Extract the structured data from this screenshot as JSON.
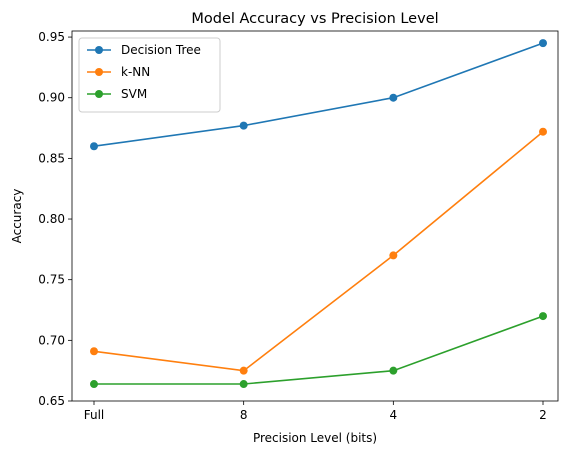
{
  "chart_data": {
    "type": "line",
    "title": "Model Accuracy vs Precision Level",
    "xlabel": "Precision Level (bits)",
    "ylabel": "Accuracy",
    "categories": [
      "Full",
      "8",
      "4",
      "2"
    ],
    "ylim": [
      0.65,
      0.955
    ],
    "yticks": [
      "0.65",
      "0.70",
      "0.75",
      "0.80",
      "0.85",
      "0.90",
      "0.95"
    ],
    "grid": false,
    "legend_position": "top-left",
    "series": [
      {
        "name": "Decision Tree",
        "color": "#1f77b4",
        "values": [
          0.86,
          0.877,
          0.9,
          0.945
        ]
      },
      {
        "name": "k-NN",
        "color": "#ff7f0e",
        "values": [
          0.691,
          0.675,
          0.77,
          0.872
        ]
      },
      {
        "name": "SVM",
        "color": "#2ca02c",
        "values": [
          0.664,
          0.664,
          0.675,
          0.72
        ]
      }
    ]
  }
}
